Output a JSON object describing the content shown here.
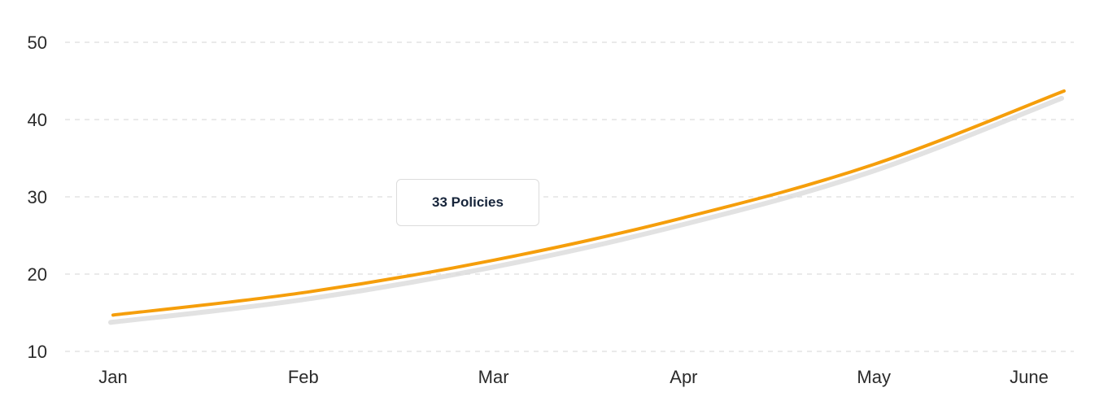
{
  "chart_data": {
    "type": "line",
    "categories": [
      "Jan",
      "Feb",
      "Mar",
      "Apr",
      "May",
      "June"
    ],
    "series": [
      {
        "values": [
          14.7,
          17.6,
          21.8,
          27.3,
          34.2,
          43.7
        ]
      }
    ],
    "y_ticks": [
      "50",
      "40",
      "30",
      "20",
      "10"
    ],
    "ylim": [
      10,
      50
    ],
    "grid": true,
    "line_color": "#f59e0b",
    "shadow_color": "#d8d8d8",
    "grid_color": "#e3e3e3",
    "tooltip": {
      "text": "33 Policies"
    }
  }
}
